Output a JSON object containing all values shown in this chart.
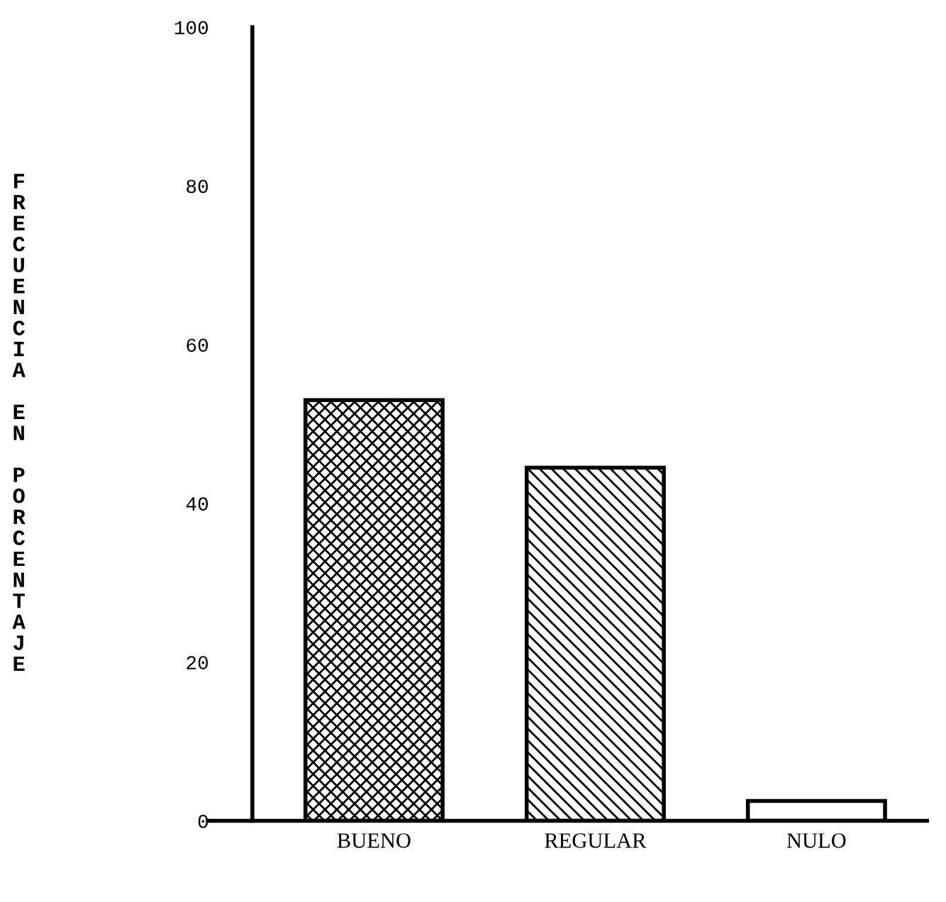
{
  "chart_data": {
    "type": "bar",
    "ylabel": "FRECUENCIA EN PORCENTAJE",
    "categories": [
      "BUENO",
      "REGULAR",
      "NULO"
    ],
    "values": [
      53,
      44.5,
      2.5
    ],
    "color": "#000000",
    "ylim": [
      0,
      100
    ],
    "yticks": [
      0,
      20,
      40,
      60,
      80,
      100
    ],
    "grid": false
  }
}
